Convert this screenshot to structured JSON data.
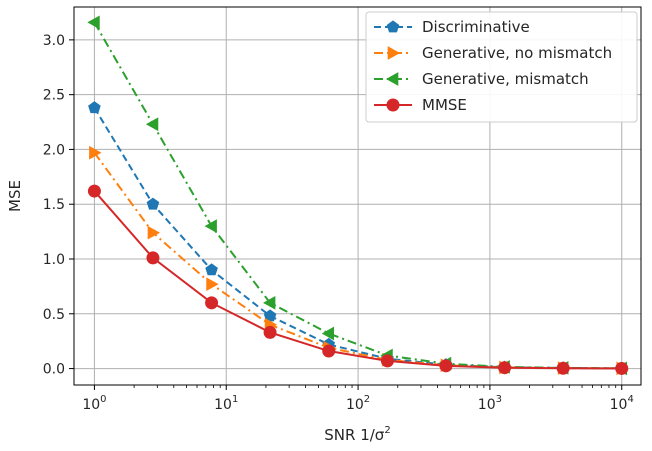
{
  "chart_data": {
    "type": "line",
    "xscale": "log",
    "xlabel": "SNR 1/σ²",
    "ylabel": "MSE",
    "xlim": [
      0.7,
      14000
    ],
    "ylim": [
      -0.15,
      3.3
    ],
    "grid": true,
    "legend_position": "top-right",
    "x": [
      1,
      2.78,
      7.74,
      21.5,
      59.9,
      167,
      464,
      1292,
      3594,
      10000
    ],
    "xticks": [
      1,
      10,
      100,
      1000,
      10000
    ],
    "xtick_labels": [
      {
        "base": "10",
        "exp": "0"
      },
      {
        "base": "10",
        "exp": "1"
      },
      {
        "base": "10",
        "exp": "2"
      },
      {
        "base": "10",
        "exp": "3"
      },
      {
        "base": "10",
        "exp": "4"
      }
    ],
    "yticks": [
      0.0,
      0.5,
      1.0,
      1.5,
      2.0,
      2.5,
      3.0
    ],
    "ytick_labels": [
      "0.0",
      "0.5",
      "1.0",
      "1.5",
      "2.0",
      "2.5",
      "3.0"
    ],
    "series": [
      {
        "name": "Discriminative",
        "color": "#1f77b4",
        "linestyle": "dashed",
        "marker": "pentagon",
        "values": [
          2.38,
          1.5,
          0.9,
          0.48,
          0.22,
          0.09,
          0.035,
          0.012,
          0.005,
          0.002
        ]
      },
      {
        "name": "Generative, no mismatch",
        "color": "#ff7f0e",
        "linestyle": "dashdot",
        "marker": "triangle-right",
        "values": [
          1.97,
          1.24,
          0.77,
          0.4,
          0.19,
          0.08,
          0.03,
          0.01,
          0.004,
          0.002
        ]
      },
      {
        "name": "Generative, mismatch",
        "color": "#2ca02c",
        "linestyle": "dashdot",
        "marker": "triangle-left",
        "values": [
          3.16,
          2.23,
          1.3,
          0.6,
          0.32,
          0.12,
          0.045,
          0.015,
          0.006,
          0.002
        ]
      },
      {
        "name": "MMSE",
        "color": "#d62728",
        "linestyle": "solid",
        "marker": "circle",
        "values": [
          1.62,
          1.01,
          0.6,
          0.33,
          0.16,
          0.07,
          0.025,
          0.008,
          0.003,
          0.001
        ]
      }
    ]
  }
}
